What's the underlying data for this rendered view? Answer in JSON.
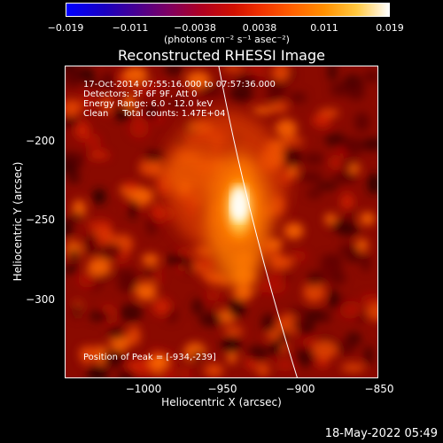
{
  "colorbar": {
    "ticks": [
      "−0.019",
      "−0.011",
      "−0.0038",
      "0.0038",
      "0.011",
      "0.019"
    ],
    "unit": "(photons cm⁻² s⁻¹ asec⁻²)"
  },
  "title": "Reconstructed RHESSI Image",
  "info": {
    "line1": "17-Oct-2014 07:55:16.000 to 07:57:36.000",
    "line2": "Detectors: 3F 6F 9F, Att 0",
    "line3": "Energy Range: 6.0 - 12.0 keV",
    "line4": "Clean     Total counts: 1.47E+04",
    "peak": "Position of Peak = [-934,-239]"
  },
  "axes": {
    "xlabel": "Heliocentric X (arcsec)",
    "ylabel": "Heliocentric Y (arcsec)",
    "xticks": [
      "−1000",
      "−950",
      "−900",
      "−850"
    ],
    "yticks": [
      "−200",
      "−250",
      "−300"
    ]
  },
  "footer_date": "18-May-2022 05:49"
}
